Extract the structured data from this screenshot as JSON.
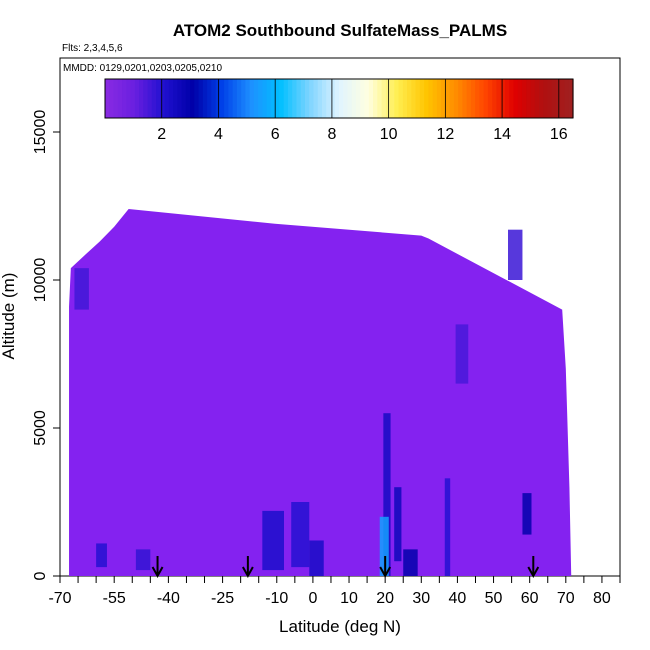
{
  "chart_data": {
    "type": "heatmap",
    "title": "ATOM2 Southbound SulfateMass_PALMS",
    "flights_label": "Flts: 2,3,4,5,6",
    "mmdd_label": "MMDD: 0129,0201,0203,0205,0210",
    "xlabel": "Latitude (deg N)",
    "ylabel": "Altitude (m)",
    "xlim": [
      -70,
      85
    ],
    "ylim": [
      0,
      17500
    ],
    "x_tick_labels": [
      "-70",
      "-55",
      "-40",
      "-25",
      "-10",
      "0",
      "10",
      "20",
      "30",
      "40",
      "50",
      "60",
      "70",
      "80"
    ],
    "x_tick_values": [
      -70,
      -55,
      -40,
      -25,
      -10,
      0,
      10,
      20,
      30,
      40,
      50,
      60,
      70,
      80
    ],
    "x_minor_ticks": [
      -65,
      -60,
      -50,
      -45,
      -35,
      -30,
      -20,
      -15,
      -5,
      5,
      15,
      25,
      35,
      45,
      55,
      65,
      75,
      85
    ],
    "y_tick_labels": [
      "0",
      "5000",
      "10000",
      "15000"
    ],
    "y_tick_values": [
      0,
      5000,
      10000,
      15000
    ],
    "colorbar": {
      "min": 0,
      "max": 16.5,
      "tick_labels": [
        "2",
        "4",
        "6",
        "8",
        "10",
        "12",
        "14",
        "16"
      ],
      "tick_values": [
        2,
        4,
        6,
        8,
        10,
        12,
        14,
        16
      ],
      "color_stops": [
        "#8a2be2",
        "#6a1fe0",
        "#2010d0",
        "#0000a8",
        "#0040e8",
        "#1e90ff",
        "#00bfff",
        "#7fd4ff",
        "#e0f4ff",
        "#ffffe0",
        "#ffee50",
        "#ffc400",
        "#ff8c00",
        "#ff4500",
        "#e00000",
        "#b01010",
        "#a02020"
      ]
    },
    "field": {
      "background_value": 0.4,
      "background_color": "#8422f0",
      "latitude_range": [
        -67.5,
        71.5
      ],
      "altitude_top_profile": [
        {
          "lat": -67.5,
          "alt": 9100
        },
        {
          "lat": -67,
          "alt": 10400
        },
        {
          "lat": -63.5,
          "alt": 10800
        },
        {
          "lat": -59,
          "alt": 11300
        },
        {
          "lat": -55,
          "alt": 11800
        },
        {
          "lat": -51,
          "alt": 12400
        },
        {
          "lat": -10.5,
          "alt": 11900
        },
        {
          "lat": 30,
          "alt": 11500
        },
        {
          "lat": 32,
          "alt": 11400
        },
        {
          "lat": 69,
          "alt": 9000
        },
        {
          "lat": 70,
          "alt": 7000
        },
        {
          "lat": 71,
          "alt": 3000
        },
        {
          "lat": 71.5,
          "alt": 0
        }
      ],
      "enhancements": [
        {
          "lat": [
            -60,
            -57
          ],
          "alt": [
            300,
            1100
          ],
          "value": 2.0
        },
        {
          "lat": [
            -49,
            -45
          ],
          "alt": [
            200,
            900
          ],
          "value": 1.8
        },
        {
          "lat": [
            -14,
            -8
          ],
          "alt": [
            200,
            2200
          ],
          "value": 2.2
        },
        {
          "lat": [
            -6,
            -1
          ],
          "alt": [
            300,
            2500
          ],
          "value": 2.0
        },
        {
          "lat": [
            -1,
            3
          ],
          "alt": [
            0,
            1200
          ],
          "value": 2.3
        },
        {
          "lat": [
            19.5,
            21.5
          ],
          "alt": [
            0,
            5500
          ],
          "value": 2.4
        },
        {
          "lat": [
            18.5,
            21
          ],
          "alt": [
            0,
            2000
          ],
          "value": 5.5
        },
        {
          "lat": [
            22.5,
            24.5
          ],
          "alt": [
            500,
            3000
          ],
          "value": 2.6
        },
        {
          "lat": [
            25,
            29
          ],
          "alt": [
            0,
            900
          ],
          "value": 3.0
        },
        {
          "lat": [
            36.5,
            38
          ],
          "alt": [
            0,
            3300
          ],
          "value": 2.0
        },
        {
          "lat": [
            58,
            60.5
          ],
          "alt": [
            1400,
            2800
          ],
          "value": 3.0
        },
        {
          "lat": [
            54,
            58
          ],
          "alt": [
            10000,
            11700
          ],
          "value": 1.7
        },
        {
          "lat": [
            39.5,
            43
          ],
          "alt": [
            6500,
            8500
          ],
          "value": 1.5
        },
        {
          "lat": [
            -66,
            -62
          ],
          "alt": [
            9000,
            10400
          ],
          "value": 1.6
        }
      ]
    },
    "arrows_lat": [
      -43,
      -18,
      20,
      61
    ],
    "arrow_color": "#000000"
  }
}
